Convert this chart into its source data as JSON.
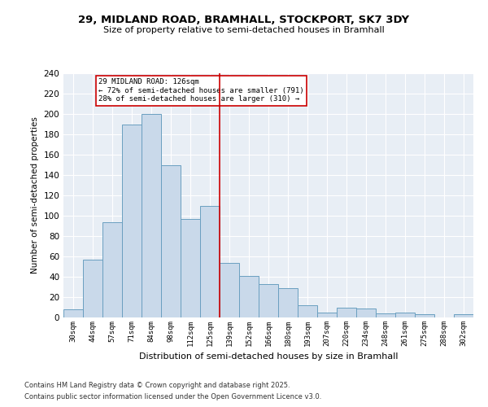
{
  "title1": "29, MIDLAND ROAD, BRAMHALL, STOCKPORT, SK7 3DY",
  "title2": "Size of property relative to semi-detached houses in Bramhall",
  "xlabel": "Distribution of semi-detached houses by size in Bramhall",
  "ylabel": "Number of semi-detached properties",
  "categories": [
    "30sqm",
    "44sqm",
    "57sqm",
    "71sqm",
    "84sqm",
    "98sqm",
    "112sqm",
    "125sqm",
    "139sqm",
    "152sqm",
    "166sqm",
    "180sqm",
    "193sqm",
    "207sqm",
    "220sqm",
    "234sqm",
    "248sqm",
    "261sqm",
    "275sqm",
    "288sqm",
    "302sqm"
  ],
  "values": [
    8,
    57,
    94,
    190,
    200,
    150,
    97,
    110,
    54,
    41,
    33,
    29,
    12,
    5,
    10,
    9,
    4,
    5,
    3,
    0,
    3
  ],
  "bar_color": "#c9d9ea",
  "bar_edge_color": "#6a9fc0",
  "vline_x": 7.5,
  "pct_smaller": 72,
  "n_smaller": 791,
  "pct_larger": 28,
  "n_larger": 310,
  "annotation_box_color": "#ffffff",
  "annotation_box_edge": "#cc0000",
  "vline_color": "#cc0000",
  "ylim": [
    0,
    240
  ],
  "yticks": [
    0,
    20,
    40,
    60,
    80,
    100,
    120,
    140,
    160,
    180,
    200,
    220,
    240
  ],
  "bg_color": "#e8eef5",
  "grid_color": "#ffffff",
  "footer1": "Contains HM Land Registry data © Crown copyright and database right 2025.",
  "footer2": "Contains public sector information licensed under the Open Government Licence v3.0."
}
